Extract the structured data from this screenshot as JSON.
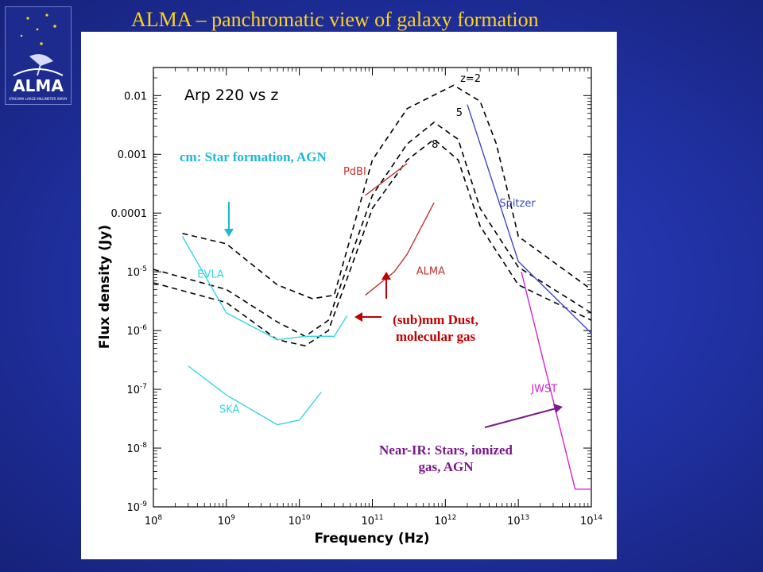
{
  "slide": {
    "title": "ALMA – panchromatic view of galaxy formation",
    "logo_text": "ALMA",
    "logo_subtext": "ATACAMA LARGE MILLIMETER ARRAY"
  },
  "colors": {
    "background": "#2233a8",
    "title": "#ffd21a",
    "cm_band": "#1fb6d8",
    "instrument_cyan": "#34d6e0",
    "alma_red": "#c4302b",
    "spitzer_blue": "#3a48c8",
    "jwst_magenta": "#d025cf",
    "annotation_red": "#c00000",
    "annotation_purple": "#7a1a8a"
  },
  "chart_data": {
    "type": "line",
    "title": "Arp 220 vs z",
    "xlabel": "Frequency (Hz)",
    "ylabel": "Flux density (Jy)",
    "x_scale": "log",
    "y_scale": "log",
    "xlim": [
      100000000.0,
      100000000000000.0
    ],
    "ylim": [
      1e-09,
      0.03
    ],
    "x_ticks": [
      "10^8",
      "10^9",
      "10^10",
      "10^11",
      "10^12",
      "10^13",
      "10^14"
    ],
    "y_ticks": [
      "0.01",
      "0.001",
      "0.0001",
      "10^-5",
      "10^-6",
      "10^-7",
      "10^-8",
      "10^-9"
    ],
    "series": [
      {
        "name": "z=2",
        "style": "dashed",
        "color": "#000000",
        "points": [
          [
            250000000.0,
            4.5e-05
          ],
          [
            1000000000.0,
            3e-05
          ],
          [
            5000000000.0,
            6e-06
          ],
          [
            15000000000.0,
            3.5e-06
          ],
          [
            30000000000.0,
            4e-06
          ],
          [
            100000000000.0,
            0.0008
          ],
          [
            300000000000.0,
            0.006
          ],
          [
            1300000000000.0,
            0.015
          ],
          [
            3000000000000.0,
            0.008
          ],
          [
            5000000000000.0,
            0.0015
          ],
          [
            10000000000000.0,
            4e-05
          ],
          [
            100000000000000.0,
            5e-06
          ]
        ]
      },
      {
        "name": "5",
        "style": "dashed",
        "color": "#000000",
        "points": [
          [
            100000000.0,
            1.1e-05
          ],
          [
            1000000000.0,
            5e-06
          ],
          [
            5000000000.0,
            1.4e-06
          ],
          [
            12000000000.0,
            8e-07
          ],
          [
            25000000000.0,
            1.5e-06
          ],
          [
            100000000000.0,
            0.0002
          ],
          [
            300000000000.0,
            0.0015
          ],
          [
            700000000000.0,
            0.0035
          ],
          [
            1500000000000.0,
            0.0018
          ],
          [
            3000000000000.0,
            0.00012
          ],
          [
            10000000000000.0,
            1.2e-05
          ],
          [
            100000000000000.0,
            2e-06
          ]
        ]
      },
      {
        "name": "8",
        "style": "dashed",
        "color": "#000000",
        "points": [
          [
            100000000.0,
            6.5e-06
          ],
          [
            1000000000.0,
            3e-06
          ],
          [
            5000000000.0,
            7e-07
          ],
          [
            12000000000.0,
            5.5e-07
          ],
          [
            25000000000.0,
            1e-06
          ],
          [
            100000000000.0,
            0.00012
          ],
          [
            300000000000.0,
            0.0008
          ],
          [
            700000000000.0,
            0.0018
          ],
          [
            1500000000000.0,
            0.0008
          ],
          [
            3000000000000.0,
            6e-05
          ],
          [
            10000000000000.0,
            6e-06
          ],
          [
            100000000000000.0,
            1.5e-06
          ]
        ]
      },
      {
        "name": "EVLA",
        "style": "solid",
        "color": "#34d6e0",
        "points": [
          [
            250000000.0,
            4e-05
          ],
          [
            1000000000.0,
            2e-06
          ],
          [
            5000000000.0,
            7e-07
          ],
          [
            12000000000.0,
            8e-07
          ],
          [
            30000000000.0,
            8e-07
          ],
          [
            45000000000.0,
            1.8e-06
          ]
        ]
      },
      {
        "name": "SKA",
        "style": "solid",
        "color": "#34d6e0",
        "points": [
          [
            300000000.0,
            2.5e-07
          ],
          [
            1000000000.0,
            8e-08
          ],
          [
            5000000000.0,
            2.5e-08
          ],
          [
            10000000000.0,
            3e-08
          ],
          [
            20000000000.0,
            9e-08
          ]
        ]
      },
      {
        "name": "PdBI",
        "style": "solid",
        "color": "#c4302b",
        "points": [
          [
            80000000000.0,
            0.0002
          ],
          [
            300000000000.0,
            0.0007
          ]
        ]
      },
      {
        "name": "ALMA",
        "style": "solid",
        "color": "#c4302b",
        "points": [
          [
            80000000000.0,
            4e-06
          ],
          [
            200000000000.0,
            1e-05
          ],
          [
            300000000000.0,
            2e-05
          ],
          [
            700000000000.0,
            0.00015
          ]
        ]
      },
      {
        "name": "Spitzer",
        "style": "solid",
        "color": "#3a48c8",
        "points": [
          [
            2000000000000.0,
            0.007
          ],
          [
            10000000000000.0,
            1.5e-05
          ],
          [
            100000000000000.0,
            9e-07
          ]
        ]
      },
      {
        "name": "JWST",
        "style": "solid",
        "color": "#d025cf",
        "points": [
          [
            11000000000000.0,
            1e-05
          ],
          [
            60000000000000.0,
            2e-09
          ],
          [
            100000000000000.0,
            2e-09
          ]
        ]
      }
    ],
    "annotations": {
      "plot_title": "Arp 220 vs z",
      "cm": "cm: Star formation, AGN",
      "submm": "(sub)mm Dust, molecular gas",
      "nir": "Near-IR: Stars, ionized gas, AGN"
    }
  }
}
